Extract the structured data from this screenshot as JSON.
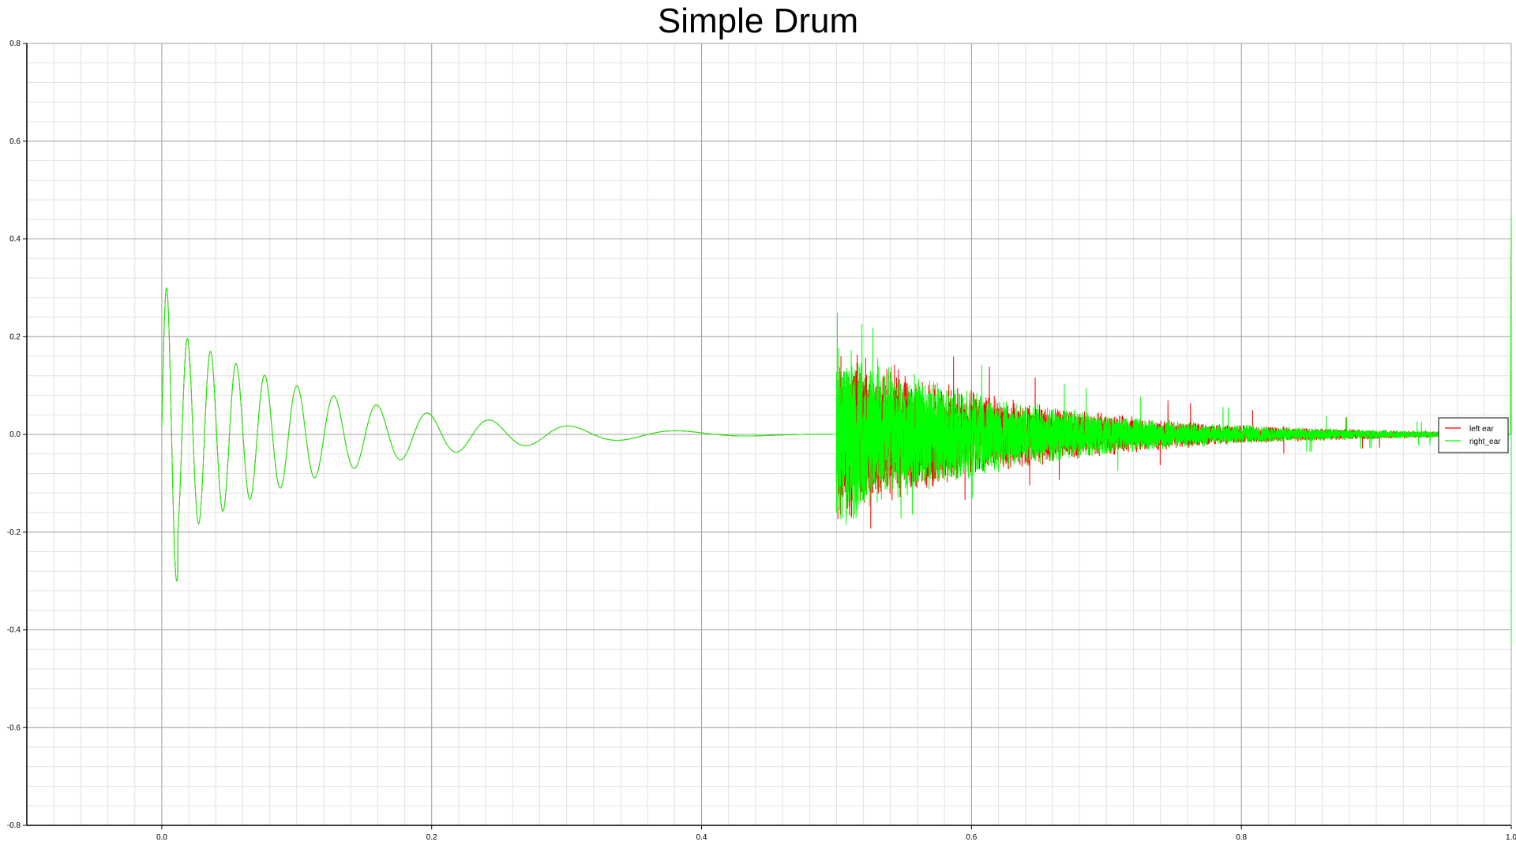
{
  "chart_data": {
    "type": "line",
    "title": "Simple Drum",
    "xlabel": "",
    "ylabel": "",
    "xlim": [
      -0.1,
      1.0
    ],
    "ylim": [
      -0.8,
      0.8
    ],
    "x_ticks": [
      0.0,
      0.2,
      0.4,
      0.6,
      0.8,
      1.0
    ],
    "x_tick_labels": [
      "0.0",
      "0.2",
      "0.4",
      "0.6",
      "0.8",
      "1.0"
    ],
    "y_ticks": [
      0.8,
      0.6,
      0.4,
      0.2,
      0.0,
      -0.2,
      -0.4,
      -0.6,
      -0.8
    ],
    "y_tick_labels": [
      "0.8",
      "0.6",
      "0.4",
      "0.2",
      "0.0",
      "-0.2",
      "-0.4",
      "-0.6",
      "-0.8"
    ],
    "grid": true,
    "minor_grid": true,
    "legend_position": "right",
    "series": [
      {
        "name": "left ear",
        "color": "#ff0000",
        "segments": [
          {
            "kind": "decaying_sine",
            "x_start": 0.0,
            "x_end": 0.5,
            "peak_max": 0.3,
            "peak_min": -0.28,
            "amplitude_start": 0.23,
            "amplitude_end": 0.0,
            "f_start_hz": 70,
            "f_end_hz": 6
          },
          {
            "kind": "noise_burst",
            "x_start": 0.5,
            "x_end": 0.98,
            "peak_max": 0.25,
            "peak_min": -0.22,
            "amplitude_start": 0.2,
            "amplitude_end": 0.0
          },
          {
            "kind": "spike",
            "x": 1.0,
            "y_max": 0.45,
            "y_min": -0.43
          }
        ]
      },
      {
        "name": "right_ear",
        "color": "#00ff00",
        "segments": [
          {
            "kind": "decaying_sine",
            "x_start": 0.0,
            "x_end": 0.5,
            "peak_max": 0.3,
            "peak_min": -0.28,
            "amplitude_start": 0.23,
            "amplitude_end": 0.0,
            "f_start_hz": 70,
            "f_end_hz": 6
          },
          {
            "kind": "noise_burst",
            "x_start": 0.5,
            "x_end": 0.98,
            "peak_max": 0.25,
            "peak_min": -0.22,
            "amplitude_start": 0.2,
            "amplitude_end": 0.0
          },
          {
            "kind": "spike",
            "x": 1.0,
            "y_max": 0.45,
            "y_min": -0.43
          }
        ]
      }
    ]
  },
  "colors": {
    "background": "#ffffff",
    "major_grid": "#a0a0a0",
    "minor_grid": "#e2e2e2",
    "axis": "#000000",
    "legend_border": "#000000"
  }
}
